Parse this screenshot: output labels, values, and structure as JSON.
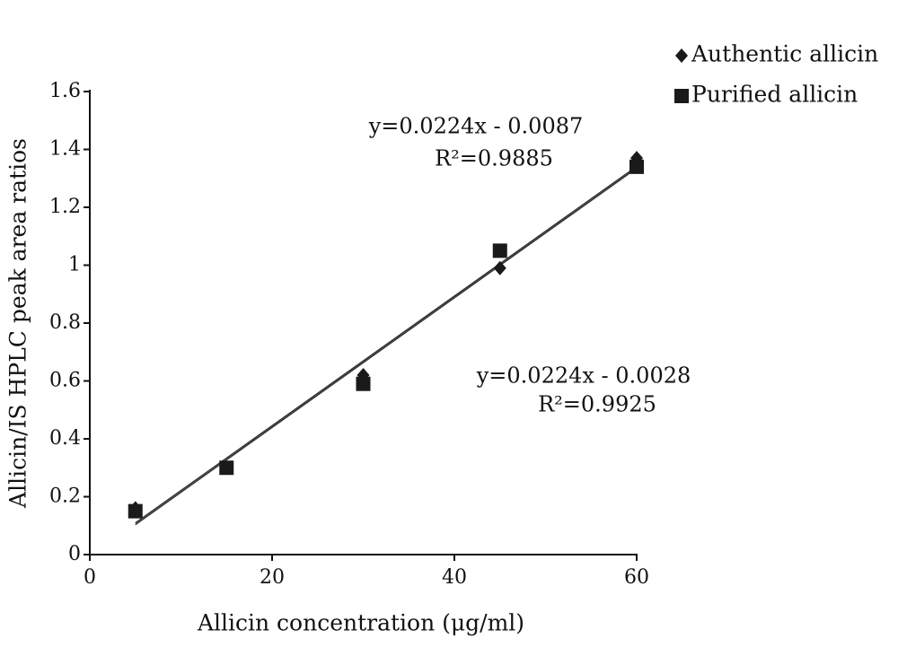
{
  "chart_data": {
    "type": "scatter",
    "x_label": "Allicin concentration (μg/ml)",
    "y_label": "Allicin/IS HPLC peak area ratios",
    "x": [
      5,
      15,
      30,
      45,
      60
    ],
    "series": [
      {
        "name": "Authentic allicin",
        "color": "#1a1a1a",
        "marker": "diamond",
        "values": [
          0.16,
          0.3,
          0.62,
          0.99,
          1.37
        ]
      },
      {
        "name": "Purified allicin",
        "color": "#1a1a1a",
        "marker": "square",
        "values": [
          0.15,
          0.3,
          0.59,
          1.05,
          1.34
        ]
      }
    ],
    "trendlines": [
      {
        "slope": 0.0224,
        "intercept": -0.0028,
        "equation": "y=0.0224x - 0.0028",
        "r2": "R²=0.9925"
      },
      {
        "slope": 0.0224,
        "intercept": -0.0087,
        "equation": "y=0.0224x - 0.0087",
        "r2": "R²=0.9885"
      }
    ],
    "xlim": [
      0,
      60
    ],
    "xticks": [
      0,
      20,
      40,
      60
    ],
    "ylim": [
      0,
      1.6
    ],
    "yticks": [
      0,
      0.2,
      0.4,
      0.6,
      0.8,
      1,
      1.2,
      1.4,
      1.6
    ],
    "legend": "top-right"
  }
}
